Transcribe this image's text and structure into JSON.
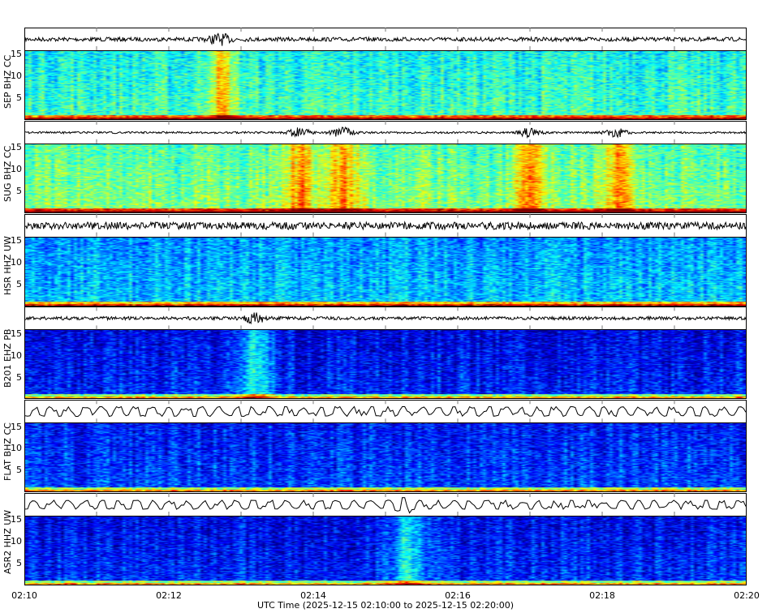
{
  "chart_data": {
    "type": "heatmap",
    "xlabel": "UTC Time (2025-12-15 02:10:00 to 2025-12-15 02:20:00)",
    "xticks": [
      "02:10",
      "02:12",
      "02:14",
      "02:16",
      "02:18",
      "02:20"
    ],
    "xlim": [
      "02:10",
      "02:20"
    ],
    "ylim": [
      0,
      16
    ],
    "yticks": [
      "5",
      "10",
      "15"
    ],
    "colormap": "jet",
    "grid": "vertical dashed gridlines each minute",
    "panels": [
      {
        "label": "SEP BHZ CC",
        "level": 0.38,
        "trace_amp": 0.25,
        "events": [
          0.27
        ]
      },
      {
        "label": "SUG BHZ CC",
        "level": 0.45,
        "trace_amp": 0.12,
        "events": [
          0.38,
          0.44,
          0.7,
          0.82
        ]
      },
      {
        "label": "HSR HHZ UW",
        "level": 0.27,
        "trace_amp": 0.45,
        "events": []
      },
      {
        "label": "B201 EHZ PB",
        "level": 0.1,
        "trace_amp": 0.2,
        "events": [
          0.32
        ]
      },
      {
        "label": "FLAT BHZ CC",
        "level": 0.14,
        "trace_amp": 0.6,
        "events": []
      },
      {
        "label": "ASR2 HHZ UW",
        "level": 0.11,
        "trace_amp": 0.55,
        "events": [
          0.53
        ]
      }
    ]
  }
}
